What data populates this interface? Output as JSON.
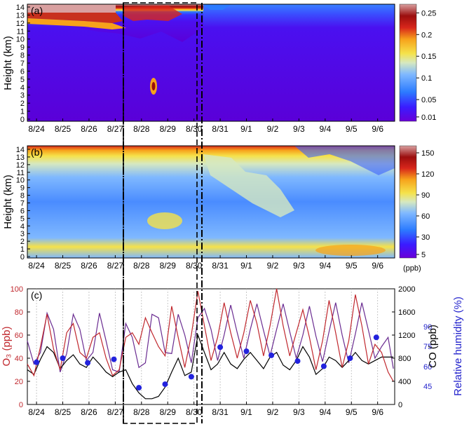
{
  "chart_data": [
    {
      "panel_label": "(a)",
      "type": "heatmap",
      "ylabel": "Height (km)",
      "y_ticks": [
        0,
        1,
        2,
        3,
        4,
        5,
        6,
        7,
        8,
        9,
        10,
        11,
        12,
        13,
        14
      ],
      "x_ticks": [
        "8/24",
        "8/25",
        "8/26",
        "8/27",
        "8/28",
        "8/29",
        "8/30",
        "8/31",
        "9/1",
        "9/2",
        "9/3",
        "9/4",
        "9/5",
        "9/6"
      ],
      "colorbar_ticks": [
        "0.01",
        "0.05",
        "0.1",
        "0.15",
        "0.2",
        "0.25"
      ],
      "colorbar_range": [
        0.0,
        0.27
      ],
      "colors": [
        "#6a00d8",
        "#3a1bff",
        "#2c7bff",
        "#7fb8ff",
        "#d6e8c0",
        "#f5e24a",
        "#f7a21b",
        "#d8261b",
        "#9b0e0e",
        "#d9a0a0"
      ]
    },
    {
      "panel_label": "(b)",
      "type": "heatmap",
      "ylabel": "Height (km)",
      "y_ticks": [
        0,
        1,
        2,
        3,
        4,
        5,
        6,
        7,
        8,
        9,
        10,
        11,
        12,
        13,
        14
      ],
      "x_ticks": [
        "8/24",
        "8/25",
        "8/26",
        "8/27",
        "8/28",
        "8/29",
        "8/30",
        "8/31",
        "9/1",
        "9/2",
        "9/3",
        "9/4",
        "9/5",
        "9/6"
      ],
      "colorbar_ticks": [
        "5",
        "30",
        "60",
        "90",
        "120",
        "150"
      ],
      "colorbar_unit": "(ppb)",
      "colorbar_range": [
        0,
        160
      ],
      "colors": [
        "#6a00d8",
        "#3a1bff",
        "#2c7bff",
        "#7fb8ff",
        "#d6e8c0",
        "#f5e24a",
        "#f7a21b",
        "#d8261b",
        "#9b0e0e",
        "#d9a0a0"
      ]
    },
    {
      "panel_label": "(c)",
      "type": "line",
      "x_ticks": [
        "8/24",
        "8/25",
        "8/26",
        "8/27",
        "8/28",
        "8/29",
        "8/30",
        "8/31",
        "9/1",
        "9/2",
        "9/3",
        "9/4",
        "9/5",
        "9/6"
      ],
      "left_axis": {
        "label": "O₃ (ppb)",
        "ticks": [
          "0",
          "20",
          "40",
          "60",
          "80",
          "100"
        ],
        "range": [
          0,
          100
        ],
        "color": "#c0272d"
      },
      "right_axis_co": {
        "label": "CO (ppb)",
        "ticks": [
          "0",
          "400",
          "800",
          "1200",
          "1600",
          "2000"
        ],
        "range": [
          0,
          2000
        ],
        "color": "#000000"
      },
      "right_axis_rh": {
        "label": "Relative humidity (%)",
        "ticks": [
          "45",
          "60",
          "75",
          "90"
        ],
        "color": "#2222cc"
      },
      "series": [
        {
          "name": "O₃",
          "color": "#c0272d",
          "x": [
            0,
            0.25,
            0.5,
            0.75,
            1,
            1.25,
            1.5,
            1.75,
            2,
            2.25,
            2.5,
            2.75,
            3,
            3.25,
            3.5,
            3.75,
            4,
            4.25,
            4.5,
            4.75,
            5,
            5.25,
            5.5,
            5.75,
            6,
            6.25,
            6.5,
            6.75,
            7,
            7.25,
            7.5,
            7.75,
            8,
            8.25,
            8.5,
            8.75,
            9,
            9.25,
            9.5,
            9.75,
            10,
            10.25,
            10.5,
            10.75,
            11,
            11.25,
            11.5,
            11.75,
            12,
            12.25,
            12.5,
            12.75,
            13,
            13.25,
            13.5,
            13.75,
            13.95
          ],
          "values": [
            35,
            25,
            50,
            78,
            48,
            30,
            62,
            70,
            45,
            40,
            58,
            62,
            40,
            25,
            30,
            58,
            62,
            52,
            75,
            62,
            50,
            42,
            85,
            58,
            32,
            60,
            98,
            68,
            38,
            58,
            88,
            62,
            40,
            62,
            90,
            70,
            42,
            68,
            100,
            68,
            42,
            62,
            82,
            58,
            30,
            55,
            90,
            62,
            32,
            55,
            95,
            68,
            35,
            52,
            45,
            28,
            20
          ]
        },
        {
          "name": "CO",
          "color": "#000000",
          "x": [
            0,
            0.25,
            0.5,
            0.75,
            1,
            1.25,
            1.5,
            1.75,
            2,
            2.25,
            2.5,
            2.75,
            3,
            3.25,
            3.5,
            3.75,
            4,
            4.25,
            4.5,
            4.75,
            5,
            5.25,
            5.5,
            5.75,
            6,
            6.25,
            6.5,
            6.75,
            7,
            7.25,
            7.5,
            7.75,
            8,
            8.25,
            8.5,
            8.75,
            9,
            9.25,
            9.5,
            9.75,
            10,
            10.25,
            10.5,
            10.75,
            11,
            11.25,
            11.5,
            11.75,
            12,
            12.25,
            12.5,
            12.75,
            13,
            13.25,
            13.5,
            13.75,
            13.95
          ],
          "values": [
            600,
            520,
            780,
            1000,
            900,
            620,
            760,
            860,
            700,
            640,
            820,
            700,
            560,
            480,
            560,
            600,
            360,
            200,
            100,
            100,
            140,
            300,
            560,
            800,
            500,
            560,
            1200,
            900,
            600,
            700,
            900,
            700,
            620,
            780,
            900,
            760,
            620,
            820,
            900,
            680,
            600,
            760,
            1000,
            820,
            520,
            620,
            820,
            760,
            640,
            760,
            900,
            760,
            700,
            760,
            820,
            820,
            820
          ]
        },
        {
          "name": "Relative humidity",
          "color": "#6a2c91",
          "x": [
            0,
            0.25,
            0.5,
            0.75,
            1,
            1.25,
            1.5,
            1.75,
            2,
            2.25,
            2.5,
            2.75,
            3,
            3.25,
            3.5,
            3.75,
            4,
            4.25,
            4.5,
            4.75,
            5,
            5.25,
            5.5,
            5.75,
            6,
            6.25,
            6.5,
            6.75,
            7,
            7.25,
            7.5,
            7.75,
            8,
            8.25,
            8.5,
            8.75,
            9,
            9.25,
            9.5,
            9.75,
            10,
            10.25,
            10.5,
            10.75,
            11,
            11.25,
            11.5,
            11.75,
            12,
            12.25,
            12.5,
            12.75,
            13,
            13.25,
            13.5,
            13.75,
            13.95
          ],
          "values": [
            1100,
            700,
            900,
            1580,
            1300,
            560,
            880,
            1560,
            1300,
            760,
            900,
            1580,
            1100,
            600,
            560,
            1400,
            1160,
            640,
            720,
            1560,
            1500,
            900,
            880,
            1560,
            1200,
            720,
            1500,
            1660,
            1300,
            760,
            1200,
            1720,
            1240,
            800,
            1300,
            1740,
            1280,
            840,
            1300,
            1740,
            1260,
            800,
            1200,
            1700,
            1180,
            740,
            1260,
            1760,
            1200,
            720,
            1220,
            1760,
            1280,
            800,
            1000,
            1160,
            620
          ]
        },
        {
          "name": "Relative humidity (points)",
          "color": "#2222dd",
          "x": [
            0.35,
            1.35,
            2.3,
            3.3,
            4.25,
            5.25,
            6.25,
            7.35,
            8.35,
            9.3,
            10.3,
            11.3,
            12.3,
            13.3
          ],
          "values": [
            730,
            800,
            720,
            780,
            290,
            350,
            480,
            990,
            920,
            850,
            750,
            660,
            800,
            1160
          ]
        }
      ]
    }
  ]
}
